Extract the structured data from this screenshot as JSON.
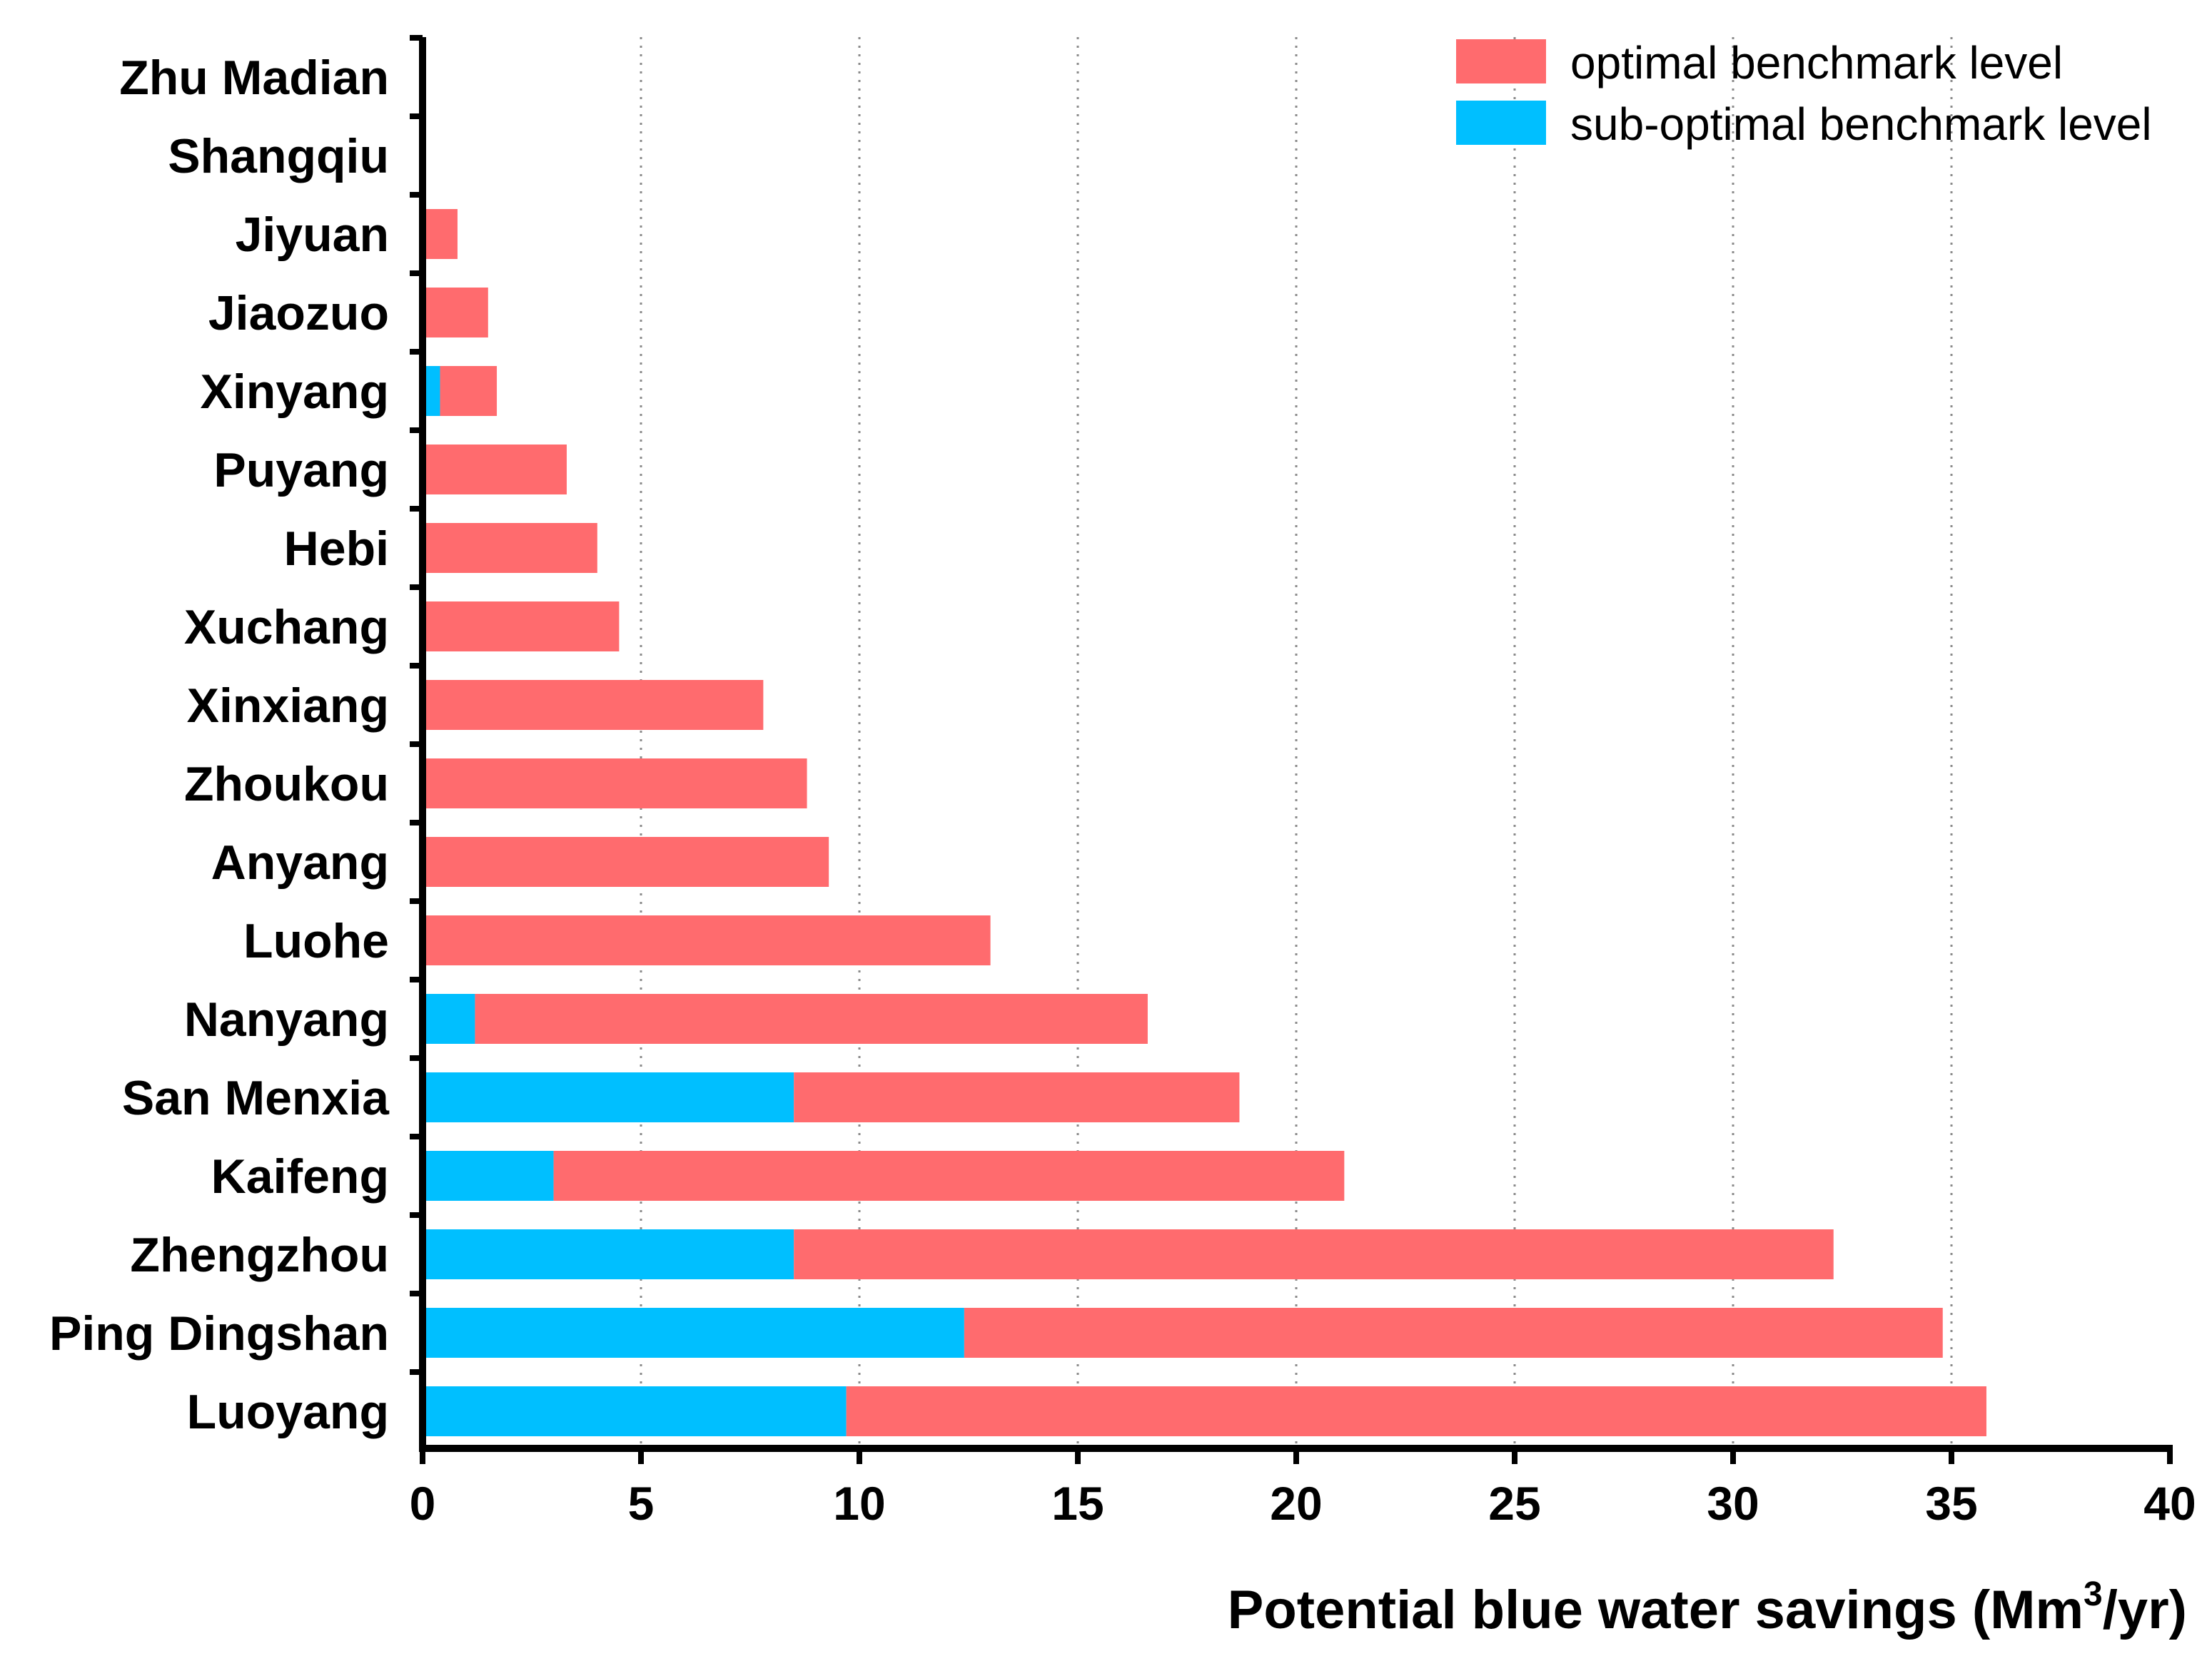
{
  "chart_data": {
    "type": "bar",
    "orientation": "horizontal",
    "stacked": true,
    "categories": [
      "Luoyang",
      "Ping Dingshan",
      "Zhengzhou",
      "Kaifeng",
      "San Menxia",
      "Nanyang",
      "Luohe",
      "Anyang",
      "Zhoukou",
      "Xinxiang",
      "Xuchang",
      "Hebi",
      "Puyang",
      "Xinyang",
      "Jiaozuo",
      "Jiyuan",
      "Shangqiu",
      "Zhu Madian"
    ],
    "series": [
      {
        "name": "sub-optimal benchmark level",
        "color": "#00BFFF",
        "values": [
          9.7,
          12.4,
          8.5,
          3.0,
          8.5,
          1.2,
          0,
          0,
          0,
          0,
          0,
          0,
          0,
          0.4,
          0,
          0,
          0,
          0
        ]
      },
      {
        "name": "optimal benchmark level",
        "color": "#FF6B6E",
        "values": [
          26.1,
          22.4,
          23.8,
          18.1,
          10.2,
          15.4,
          13.0,
          9.3,
          8.8,
          7.8,
          4.5,
          4.0,
          3.3,
          1.3,
          1.5,
          0.8,
          0,
          0
        ]
      }
    ],
    "xlabel_prefix": "Potential blue water savings (Mm",
    "xlabel_sup": "3",
    "xlabel_suffix": "/yr)",
    "xlim": [
      0,
      40
    ],
    "xticks": [
      0,
      5,
      10,
      15,
      20,
      25,
      30,
      35,
      40
    ],
    "grid": "vertical dotted",
    "legend": {
      "placement": "top-right",
      "entries": [
        "optimal benchmark level",
        "sub-optimal benchmark level"
      ]
    }
  }
}
